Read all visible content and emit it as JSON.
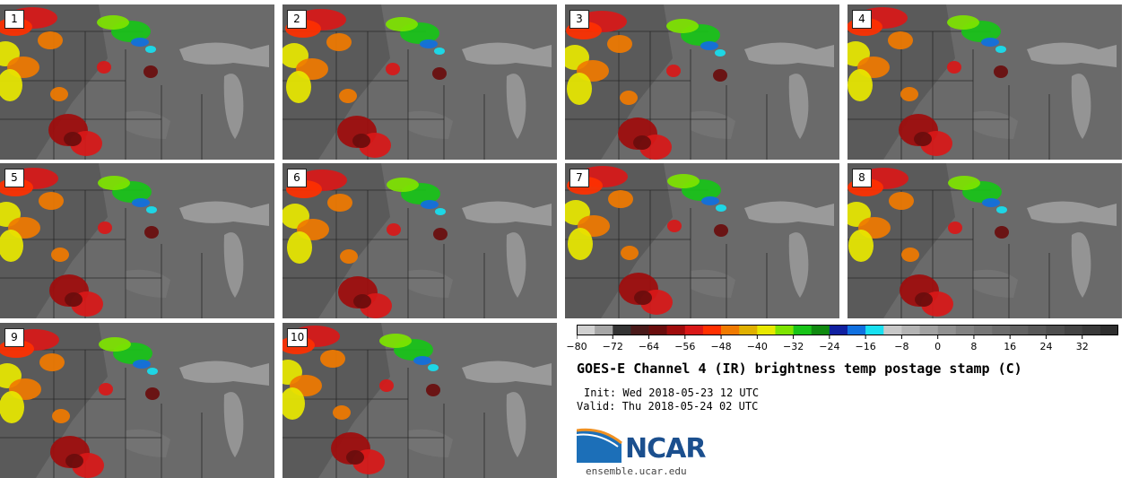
{
  "figure": {
    "title": "GOES-E Channel 4 (IR) brightness temp postage stamp (C)",
    "init": "Init: Wed 2018-05-23 12 UTC",
    "valid": "Valid: Thu 2018-05-24 02 UTC",
    "logo_text": "NCAR",
    "site": "ensemble.ucar.edu"
  },
  "panels": [
    "1",
    "2",
    "3",
    "4",
    "5",
    "6",
    "7",
    "8",
    "9",
    "10"
  ],
  "chart_data": {
    "type": "heatmap",
    "title": "GOES-E Channel 4 (IR) brightness temp postage stamp (C)",
    "colorbar": {
      "min": -80,
      "max": 40,
      "step": 4,
      "tick_values": [
        -80,
        -72,
        -64,
        -56,
        -48,
        -40,
        -32,
        -24,
        -16,
        -8,
        0,
        8,
        16,
        24,
        32
      ],
      "tick_labels": [
        "−80",
        "−72",
        "−64",
        "−56",
        "−48",
        "−40",
        "−32",
        "−24",
        "−16",
        "−8",
        "0",
        "8",
        "16",
        "24",
        "32"
      ],
      "colors": [
        "#d0d0d0",
        "#a6a6a6",
        "#343434",
        "#4a1a1a",
        "#6a0d0d",
        "#a00c0c",
        "#d91818",
        "#ff3000",
        "#f07a00",
        "#e0b000",
        "#e8e800",
        "#7ee400",
        "#18c418",
        "#108a10",
        "#1020a0",
        "#1070e0",
        "#18e0f0",
        "#c8c8c8",
        "#b4b4b4",
        "#a2a2a2",
        "#909090",
        "#828282",
        "#767676",
        "#6c6c6c",
        "#626262",
        "#585858",
        "#4e4e4e",
        "#444444",
        "#3a3a3a",
        "#2e2e2e"
      ]
    },
    "members": 10
  }
}
